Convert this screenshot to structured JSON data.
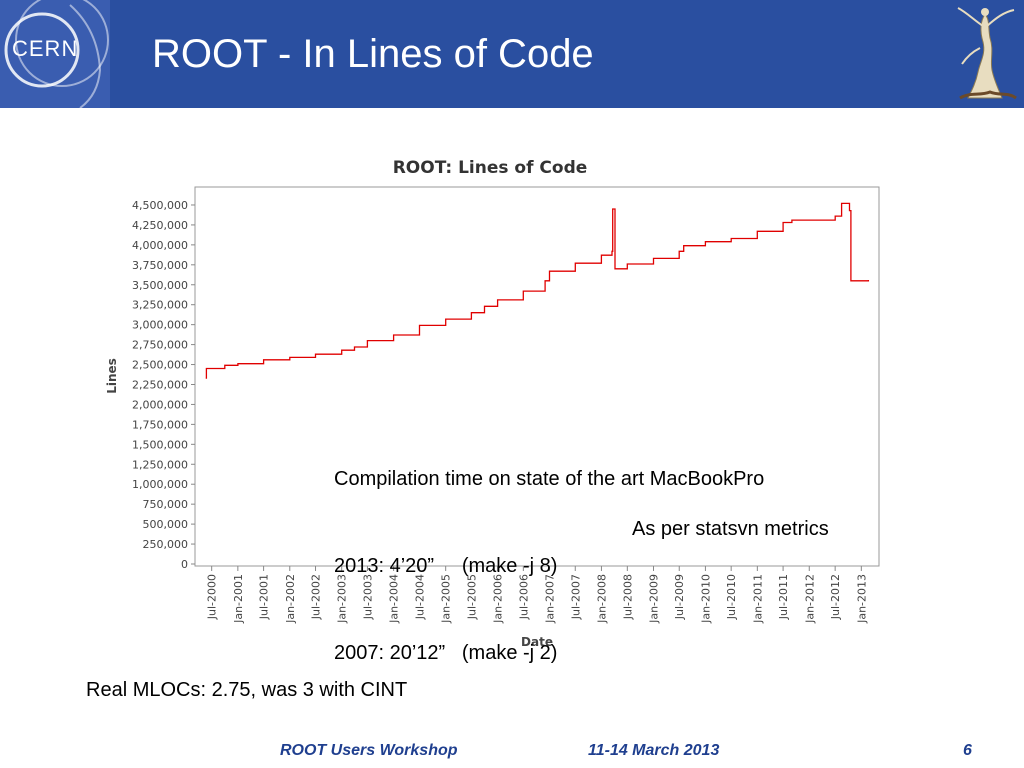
{
  "slide": {
    "title": "ROOT - In Lines of Code",
    "logo_text": "CERN",
    "compile_note": {
      "line1": "Compilation time on state of the art MacBookPro",
      "line2": "2013: 4’20”     (make -j 8)",
      "line3": "2007: 20’12”   (make -j 2)"
    },
    "source_note": "As per statsvn metrics",
    "bottom_text": "Real MLOCs: 2.75, was 3 with CINT",
    "footer": {
      "event": "ROOT Users Workshop",
      "dates": "11-14 March 2013",
      "page": "6"
    },
    "colors": {
      "header_bg": "#2a4fa0",
      "line": "#e00000",
      "footer_text": "#1f3f8f"
    }
  },
  "chart_data": {
    "type": "line",
    "title": "ROOT: Lines of Code",
    "xlabel": "Date",
    "ylabel": "Lines",
    "ylim": [
      0,
      4600000
    ],
    "y_ticks": [
      0,
      250000,
      500000,
      750000,
      1000000,
      1250000,
      1500000,
      1750000,
      2000000,
      2250000,
      2500000,
      2750000,
      3000000,
      3250000,
      3500000,
      3750000,
      4000000,
      4250000,
      4500000
    ],
    "y_tick_labels": [
      "0",
      "250,000",
      "500,000",
      "750,000",
      "1,000,000",
      "1,250,000",
      "1,500,000",
      "1,750,000",
      "2,000,000",
      "2,250,000",
      "2,500,000",
      "2,750,000",
      "3,000,000",
      "3,250,000",
      "3,500,000",
      "3,750,000",
      "4,000,000",
      "4,250,000",
      "4,500,000"
    ],
    "x_tick_labels": [
      "Jul-2000",
      "Jan-2001",
      "Jul-2001",
      "Jan-2002",
      "Jul-2002",
      "Jan-2003",
      "Jul-2003",
      "Jan-2004",
      "Jul-2004",
      "Jan-2005",
      "Jul-2005",
      "Jan-2006",
      "Jul-2006",
      "Jan-2007",
      "Jul-2007",
      "Jan-2008",
      "Jul-2008",
      "Jan-2009",
      "Jul-2009",
      "Jan-2010",
      "Jul-2010",
      "Jan-2011",
      "Jul-2011",
      "Jan-2012",
      "Jul-2012",
      "Jan-2013"
    ],
    "grid": false,
    "series": [
      {
        "color": "#e00000",
        "points": [
          [
            "2000-05-20",
            2330000
          ],
          [
            "2000-05-25",
            2450000
          ],
          [
            "2000-10-01",
            2490000
          ],
          [
            "2001-01-01",
            2510000
          ],
          [
            "2001-07-01",
            2560000
          ],
          [
            "2002-01-01",
            2590000
          ],
          [
            "2002-07-01",
            2630000
          ],
          [
            "2003-01-01",
            2680000
          ],
          [
            "2003-04-01",
            2720000
          ],
          [
            "2003-07-01",
            2800000
          ],
          [
            "2004-01-01",
            2870000
          ],
          [
            "2004-07-01",
            2990000
          ],
          [
            "2005-01-01",
            3070000
          ],
          [
            "2005-07-01",
            3150000
          ],
          [
            "2005-10-01",
            3230000
          ],
          [
            "2006-01-01",
            3310000
          ],
          [
            "2006-07-01",
            3420000
          ],
          [
            "2006-12-01",
            3550000
          ],
          [
            "2007-01-01",
            3670000
          ],
          [
            "2007-07-01",
            3770000
          ],
          [
            "2008-01-01",
            3870000
          ],
          [
            "2008-03-15",
            3920000
          ],
          [
            "2008-03-20",
            4450000
          ],
          [
            "2008-04-05",
            3700000
          ],
          [
            "2008-07-01",
            3760000
          ],
          [
            "2009-01-01",
            3830000
          ],
          [
            "2009-07-01",
            3920000
          ],
          [
            "2009-08-01",
            3990000
          ],
          [
            "2010-01-01",
            4040000
          ],
          [
            "2010-07-01",
            4080000
          ],
          [
            "2011-01-01",
            4170000
          ],
          [
            "2011-07-01",
            4280000
          ],
          [
            "2011-09-01",
            4310000
          ],
          [
            "2012-01-01",
            4310000
          ],
          [
            "2012-07-01",
            4360000
          ],
          [
            "2012-08-15",
            4520000
          ],
          [
            "2012-10-10",
            4430000
          ],
          [
            "2012-10-20",
            3550000
          ],
          [
            "2013-02-20",
            3560000
          ]
        ]
      }
    ]
  }
}
